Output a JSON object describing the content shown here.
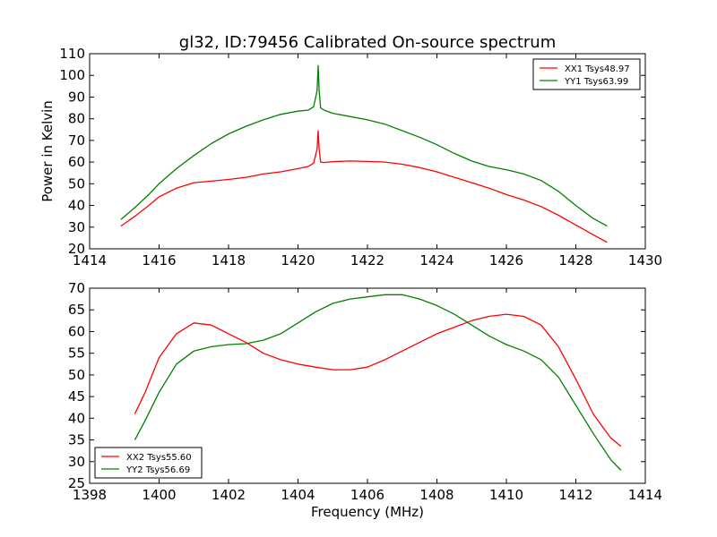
{
  "figure": {
    "title": "gl32, ID:79456 Calibrated On-source spectrum",
    "xlabel": "Frequency (MHz)"
  },
  "chart_data": [
    {
      "type": "line",
      "ylabel": "Power in Kelvin",
      "xlabel": "",
      "xlim": [
        1414,
        1430
      ],
      "ylim": [
        20,
        110
      ],
      "xticks": [
        1414,
        1416,
        1418,
        1420,
        1422,
        1424,
        1426,
        1428,
        1430
      ],
      "yticks": [
        20,
        30,
        40,
        50,
        60,
        70,
        80,
        90,
        100,
        110
      ],
      "legend_position": "top-right",
      "grid": false,
      "series": [
        {
          "name": "XX1 Tsys48.97",
          "color": "#ff0000",
          "x": [
            1414.9,
            1415.3,
            1415.7,
            1416.0,
            1416.5,
            1417.0,
            1417.5,
            1418.0,
            1418.5,
            1419.0,
            1419.5,
            1420.0,
            1420.3,
            1420.45,
            1420.55,
            1420.58,
            1420.61,
            1420.65,
            1420.75,
            1421.0,
            1421.5,
            1422.0,
            1422.5,
            1423.0,
            1423.5,
            1424.0,
            1424.5,
            1425.0,
            1425.5,
            1426.0,
            1426.5,
            1427.0,
            1427.5,
            1428.0,
            1428.5,
            1428.9
          ],
          "y": [
            30.5,
            35,
            40,
            44,
            48,
            50.5,
            51.2,
            52,
            53,
            54.5,
            55.5,
            57,
            58,
            59.5,
            66,
            74.5,
            66,
            60,
            59.8,
            60.2,
            60.5,
            60.3,
            60,
            59,
            57.5,
            55.5,
            53,
            50.5,
            48,
            45,
            42.5,
            39.5,
            35.5,
            31,
            26.5,
            23
          ]
        },
        {
          "name": "YY1 Tsys63.99",
          "color": "#008000",
          "x": [
            1414.9,
            1415.3,
            1415.7,
            1416.0,
            1416.5,
            1417.0,
            1417.5,
            1418.0,
            1418.5,
            1419.0,
            1419.5,
            1420.0,
            1420.3,
            1420.45,
            1420.55,
            1420.58,
            1420.61,
            1420.65,
            1420.75,
            1421.0,
            1421.5,
            1422.0,
            1422.5,
            1423.0,
            1423.5,
            1424.0,
            1424.5,
            1425.0,
            1425.5,
            1426.0,
            1426.5,
            1427.0,
            1427.5,
            1428.0,
            1428.5,
            1428.9
          ],
          "y": [
            33.5,
            39,
            45,
            50,
            57,
            63,
            68.5,
            73,
            76.5,
            79.5,
            82,
            83.5,
            84,
            85.5,
            93,
            104.5,
            93,
            85,
            84,
            82.5,
            81,
            79.5,
            77.5,
            74.5,
            71.5,
            68,
            64,
            60.5,
            58,
            56.5,
            54.5,
            51.5,
            46.5,
            40,
            34,
            30.5
          ]
        }
      ]
    },
    {
      "type": "line",
      "ylabel": "",
      "xlabel": "Frequency (MHz)",
      "xlim": [
        1398,
        1414
      ],
      "ylim": [
        25,
        70
      ],
      "xticks": [
        1398,
        1400,
        1402,
        1404,
        1406,
        1408,
        1410,
        1412,
        1414
      ],
      "yticks": [
        25,
        30,
        35,
        40,
        45,
        50,
        55,
        60,
        65,
        70
      ],
      "legend_position": "bottom-left",
      "grid": false,
      "series": [
        {
          "name": "XX2 Tsys55.60",
          "color": "#ff0000",
          "x": [
            1399.3,
            1399.6,
            1400.0,
            1400.5,
            1401.0,
            1401.5,
            1402.0,
            1402.5,
            1403.0,
            1403.5,
            1404.0,
            1404.5,
            1405.0,
            1405.5,
            1406.0,
            1406.5,
            1407.0,
            1407.5,
            1408.0,
            1408.5,
            1409.0,
            1409.5,
            1410.0,
            1410.5,
            1411.0,
            1411.5,
            1412.0,
            1412.5,
            1413.0,
            1413.3
          ],
          "y": [
            41,
            46,
            54,
            59.5,
            62,
            61.5,
            59.5,
            57.5,
            55,
            53.5,
            52.5,
            51.8,
            51.2,
            51.2,
            51.8,
            53.5,
            55.5,
            57.5,
            59.5,
            61,
            62.5,
            63.5,
            64,
            63.5,
            61.5,
            56.5,
            49,
            41,
            35.5,
            33.5
          ]
        },
        {
          "name": "YY2 Tsys56.69",
          "color": "#008000",
          "x": [
            1399.3,
            1399.6,
            1400.0,
            1400.5,
            1401.0,
            1401.5,
            1402.0,
            1402.5,
            1403.0,
            1403.5,
            1404.0,
            1404.5,
            1405.0,
            1405.5,
            1406.0,
            1406.5,
            1407.0,
            1407.5,
            1408.0,
            1408.5,
            1409.0,
            1409.5,
            1410.0,
            1410.5,
            1411.0,
            1411.5,
            1412.0,
            1412.5,
            1413.0,
            1413.3
          ],
          "y": [
            35,
            39.5,
            46,
            52.5,
            55.5,
            56.5,
            57,
            57.2,
            58,
            59.5,
            62,
            64.5,
            66.5,
            67.5,
            68,
            68.5,
            68.5,
            67.5,
            66,
            64,
            61.5,
            59,
            57,
            55.5,
            53.5,
            49.5,
            43,
            36.5,
            30.5,
            28
          ]
        }
      ]
    }
  ]
}
